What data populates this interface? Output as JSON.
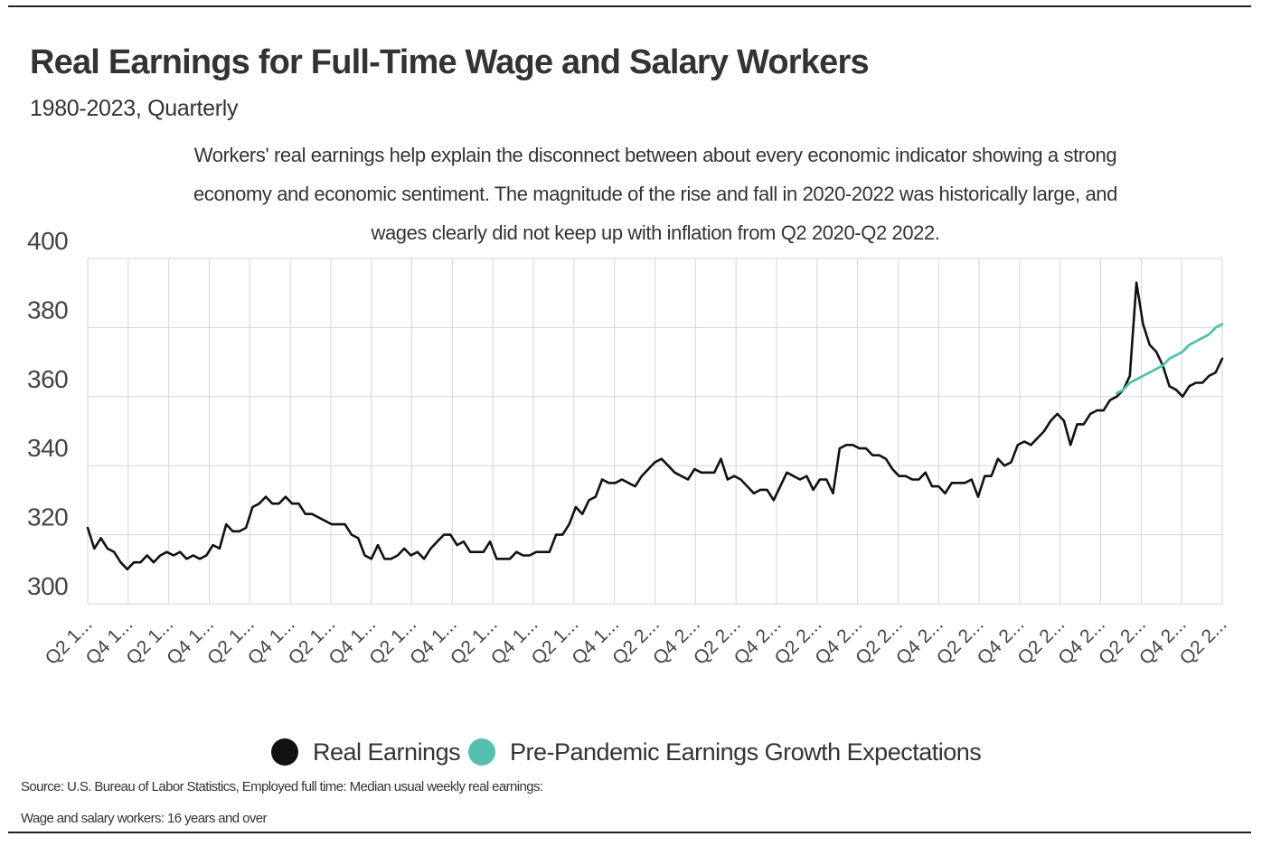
{
  "title": "Real Earnings for Full-Time Wage and Salary Workers",
  "subtitle": "1980-2023, Quarterly",
  "description": "Workers' real earnings help explain the disconnect between about every economic indicator showing a strong economy and economic sentiment. The magnitude of the rise and fall in 2020-2022 was historically large, and wages clearly did not keep up with inflation from Q2 2020-Q2 2022.",
  "source_line1": "Source:  U.S. Bureau of Labor Statistics, Employed full time: Median usual weekly real earnings:",
  "source_line2": "Wage and salary workers: 16 years and over",
  "legend": {
    "real_label": "Real Earnings",
    "real_color": "#111111",
    "pre_label": "Pre-Pandemic Earnings Growth Expectations",
    "pre_color": "#56bfae"
  },
  "chart_data": {
    "type": "line",
    "title": "Real Earnings for Full-Time Wage and Salary Workers",
    "subtitle": "1980-2023, Quarterly",
    "xlabel": "",
    "ylabel": "",
    "ylim": [
      300,
      400
    ],
    "yticks": [
      300,
      320,
      340,
      360,
      380,
      400
    ],
    "grid": true,
    "legend_position": "bottom",
    "x_tick_labels": [
      "Q2 1...",
      "Q4 1...",
      "Q2 1...",
      "Q4 1...",
      "Q2 1...",
      "Q4 1...",
      "Q2 1...",
      "Q4 1...",
      "Q2 1...",
      "Q4 1...",
      "Q2 1...",
      "Q4 1...",
      "Q2 1...",
      "Q4 1...",
      "Q2 2...",
      "Q4 2...",
      "Q2 2...",
      "Q4 2...",
      "Q2 2...",
      "Q4 2...",
      "Q2 2...",
      "Q4 2...",
      "Q2 2...",
      "Q4 2...",
      "Q2 2...",
      "Q4 2...",
      "Q2 2...",
      "Q4 2...",
      "Q2 2..."
    ],
    "series": [
      {
        "name": "Real Earnings",
        "color": "#111111",
        "points": [
          [
            1980.0,
            322
          ],
          [
            1980.25,
            316
          ],
          [
            1980.5,
            319
          ],
          [
            1980.75,
            316
          ],
          [
            1981.0,
            315
          ],
          [
            1981.25,
            312
          ],
          [
            1981.5,
            310
          ],
          [
            1981.75,
            312
          ],
          [
            1982.0,
            312
          ],
          [
            1982.25,
            314
          ],
          [
            1982.5,
            312
          ],
          [
            1982.75,
            314
          ],
          [
            1983.0,
            315
          ],
          [
            1983.25,
            314
          ],
          [
            1983.5,
            315
          ],
          [
            1983.75,
            313
          ],
          [
            1984.0,
            314
          ],
          [
            1984.25,
            313
          ],
          [
            1984.5,
            314
          ],
          [
            1984.75,
            317
          ],
          [
            1985.0,
            316
          ],
          [
            1985.25,
            323
          ],
          [
            1985.5,
            321
          ],
          [
            1985.75,
            321
          ],
          [
            1986.0,
            322
          ],
          [
            1986.25,
            328
          ],
          [
            1986.5,
            329
          ],
          [
            1986.75,
            331
          ],
          [
            1987.0,
            329
          ],
          [
            1987.25,
            329
          ],
          [
            1987.5,
            331
          ],
          [
            1987.75,
            329
          ],
          [
            1988.0,
            329
          ],
          [
            1988.25,
            326
          ],
          [
            1988.5,
            326
          ],
          [
            1988.75,
            325
          ],
          [
            1989.0,
            324
          ],
          [
            1989.25,
            323
          ],
          [
            1989.5,
            323
          ],
          [
            1989.75,
            323
          ],
          [
            1990.0,
            320
          ],
          [
            1990.25,
            319
          ],
          [
            1990.5,
            314
          ],
          [
            1990.75,
            313
          ],
          [
            1991.0,
            317
          ],
          [
            1991.25,
            313
          ],
          [
            1991.5,
            313
          ],
          [
            1991.75,
            314
          ],
          [
            1992.0,
            316
          ],
          [
            1992.25,
            314
          ],
          [
            1992.5,
            315
          ],
          [
            1992.75,
            313
          ],
          [
            1993.0,
            316
          ],
          [
            1993.25,
            318
          ],
          [
            1993.5,
            320
          ],
          [
            1993.75,
            320
          ],
          [
            1994.0,
            317
          ],
          [
            1994.25,
            318
          ],
          [
            1994.5,
            315
          ],
          [
            1994.75,
            315
          ],
          [
            1995.0,
            315
          ],
          [
            1995.25,
            318
          ],
          [
            1995.5,
            313
          ],
          [
            1995.75,
            313
          ],
          [
            1996.0,
            313
          ],
          [
            1996.25,
            315
          ],
          [
            1996.5,
            314
          ],
          [
            1996.75,
            314
          ],
          [
            1997.0,
            315
          ],
          [
            1997.25,
            315
          ],
          [
            1997.5,
            315
          ],
          [
            1997.75,
            320
          ],
          [
            1998.0,
            320
          ],
          [
            1998.25,
            323
          ],
          [
            1998.5,
            328
          ],
          [
            1998.75,
            326
          ],
          [
            1999.0,
            330
          ],
          [
            1999.25,
            331
          ],
          [
            1999.5,
            336
          ],
          [
            1999.75,
            335
          ],
          [
            2000.0,
            335
          ],
          [
            2000.25,
            336
          ],
          [
            2000.5,
            335
          ],
          [
            2000.75,
            334
          ],
          [
            2001.0,
            337
          ],
          [
            2001.25,
            339
          ],
          [
            2001.5,
            341
          ],
          [
            2001.75,
            342
          ],
          [
            2002.0,
            340
          ],
          [
            2002.25,
            338
          ],
          [
            2002.5,
            337
          ],
          [
            2002.75,
            336
          ],
          [
            2003.0,
            339
          ],
          [
            2003.25,
            338
          ],
          [
            2003.5,
            338
          ],
          [
            2003.75,
            338
          ],
          [
            2004.0,
            342
          ],
          [
            2004.25,
            336
          ],
          [
            2004.5,
            337
          ],
          [
            2004.75,
            336
          ],
          [
            2005.0,
            334
          ],
          [
            2005.25,
            332
          ],
          [
            2005.5,
            333
          ],
          [
            2005.75,
            333
          ],
          [
            2006.0,
            330
          ],
          [
            2006.25,
            334
          ],
          [
            2006.5,
            338
          ],
          [
            2006.75,
            337
          ],
          [
            2007.0,
            336
          ],
          [
            2007.25,
            337
          ],
          [
            2007.5,
            333
          ],
          [
            2007.75,
            336
          ],
          [
            2008.0,
            336
          ],
          [
            2008.25,
            332
          ],
          [
            2008.5,
            345
          ],
          [
            2008.75,
            346
          ],
          [
            2009.0,
            346
          ],
          [
            2009.25,
            345
          ],
          [
            2009.5,
            345
          ],
          [
            2009.75,
            343
          ],
          [
            2010.0,
            343
          ],
          [
            2010.25,
            342
          ],
          [
            2010.5,
            339
          ],
          [
            2010.75,
            337
          ],
          [
            2011.0,
            337
          ],
          [
            2011.25,
            336
          ],
          [
            2011.5,
            336
          ],
          [
            2011.75,
            338
          ],
          [
            2012.0,
            334
          ],
          [
            2012.25,
            334
          ],
          [
            2012.5,
            332
          ],
          [
            2012.75,
            335
          ],
          [
            2013.0,
            335
          ],
          [
            2013.25,
            335
          ],
          [
            2013.5,
            336
          ],
          [
            2013.75,
            331
          ],
          [
            2014.0,
            337
          ],
          [
            2014.25,
            337
          ],
          [
            2014.5,
            342
          ],
          [
            2014.75,
            340
          ],
          [
            2015.0,
            341
          ],
          [
            2015.25,
            346
          ],
          [
            2015.5,
            347
          ],
          [
            2015.75,
            346
          ],
          [
            2016.0,
            348
          ],
          [
            2016.25,
            350
          ],
          [
            2016.5,
            353
          ],
          [
            2016.75,
            355
          ],
          [
            2017.0,
            353
          ],
          [
            2017.25,
            346
          ],
          [
            2017.5,
            352
          ],
          [
            2017.75,
            352
          ],
          [
            2018.0,
            355
          ],
          [
            2018.25,
            356
          ],
          [
            2018.5,
            356
          ],
          [
            2018.75,
            359
          ],
          [
            2019.0,
            360
          ],
          [
            2019.25,
            362
          ],
          [
            2019.5,
            366
          ],
          [
            2019.75,
            393
          ],
          [
            2020.0,
            381
          ],
          [
            2020.25,
            375
          ],
          [
            2020.5,
            373
          ],
          [
            2020.75,
            369
          ],
          [
            2021.0,
            363
          ],
          [
            2021.25,
            362
          ],
          [
            2021.5,
            360
          ],
          [
            2021.75,
            363
          ],
          [
            2022.0,
            364
          ],
          [
            2022.25,
            364
          ],
          [
            2022.5,
            366
          ],
          [
            2022.75,
            367
          ],
          [
            2023.0,
            371
          ]
        ]
      },
      {
        "name": "Pre-Pandemic Earnings Growth Expectations",
        "color": "#56bfae",
        "points": [
          [
            2019.0,
            361
          ],
          [
            2019.25,
            362
          ],
          [
            2019.5,
            364
          ],
          [
            2019.75,
            365
          ],
          [
            2020.0,
            366
          ],
          [
            2020.25,
            367
          ],
          [
            2020.5,
            368
          ],
          [
            2020.75,
            369
          ],
          [
            2021.0,
            371
          ],
          [
            2021.25,
            372
          ],
          [
            2021.5,
            373
          ],
          [
            2021.75,
            375
          ],
          [
            2022.0,
            376
          ],
          [
            2022.25,
            377
          ],
          [
            2022.5,
            378
          ],
          [
            2022.75,
            380
          ],
          [
            2023.0,
            381
          ]
        ]
      }
    ]
  }
}
